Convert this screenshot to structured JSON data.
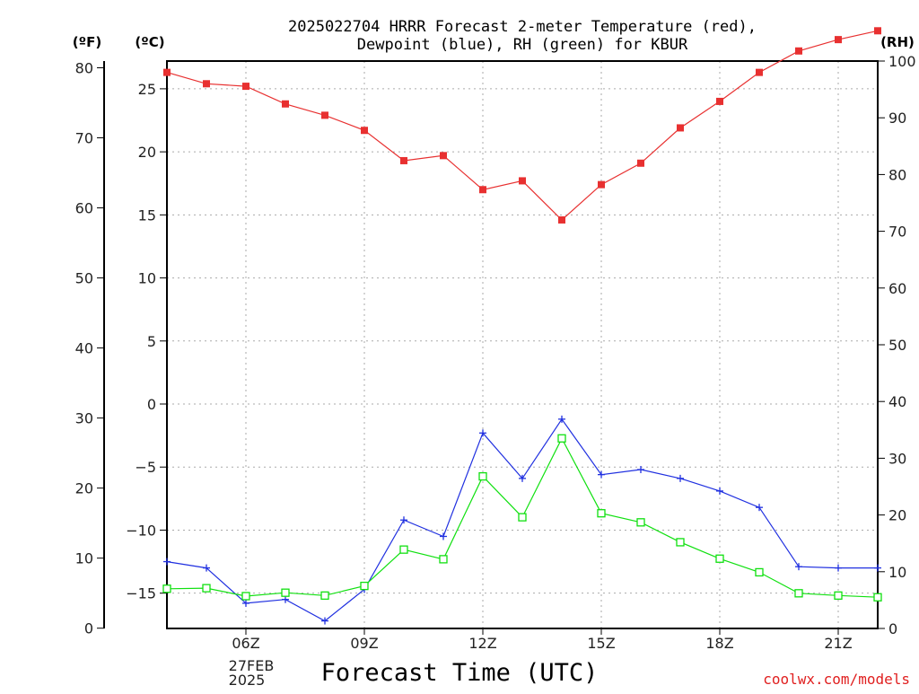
{
  "chart_data": {
    "type": "line",
    "title": "2025022704 HRRR Forecast 2-meter Temperature (red),",
    "subtitle": "Dewpoint (blue), RH (green) for KBUR",
    "xlabel": "Forecast Time (UTC)",
    "units": {
      "fahrenheit": "(ºF)",
      "celsius": "(ºC)",
      "rh": "(RH)"
    },
    "x_ticks": [
      "06Z",
      "09Z",
      "12Z",
      "15Z",
      "18Z",
      "21Z"
    ],
    "date_label_1": "27FEB",
    "date_label_2": "2025",
    "x": [
      "04Z",
      "05Z",
      "06Z",
      "07Z",
      "08Z",
      "09Z",
      "10Z",
      "11Z",
      "12Z",
      "13Z",
      "14Z",
      "15Z",
      "16Z",
      "17Z",
      "18Z",
      "19Z",
      "20Z",
      "21Z",
      "22Z"
    ],
    "celsius_ticks": [
      "25",
      "20",
      "15",
      "10",
      "5",
      "0",
      "−5",
      "−10",
      "−15"
    ],
    "fahrenheit_ticks": [
      "80",
      "70",
      "60",
      "50",
      "40",
      "30",
      "20",
      "10",
      "0"
    ],
    "rh_ticks": [
      "100",
      "90",
      "80",
      "70",
      "60",
      "50",
      "40",
      "30",
      "20",
      "10",
      "0"
    ],
    "xlim_hours": [
      4,
      22
    ],
    "ylim_celsius": [
      -17.8,
      27.2
    ],
    "ylim_rh": [
      0,
      100
    ],
    "grid": true,
    "series": [
      {
        "name": "Temperature",
        "axis": "celsius",
        "color": "#e83030",
        "marker": "filled-square",
        "values": [
          26.3,
          25.4,
          25.2,
          23.8,
          22.9,
          21.7,
          19.3,
          19.7,
          17.0,
          17.7,
          14.6,
          17.4,
          19.1,
          21.9,
          24.0,
          26.3,
          28.0,
          28.9,
          29.6
        ]
      },
      {
        "name": "Dewpoint",
        "axis": "celsius",
        "color": "#2030e0",
        "marker": "plus",
        "values": [
          -12.5,
          -13.0,
          -15.8,
          -15.5,
          -17.2,
          -14.7,
          -9.2,
          -10.5,
          -2.3,
          -5.9,
          -1.2,
          -5.6,
          -5.2,
          -5.9,
          -6.9,
          -8.2,
          -12.9,
          -13.0,
          -13.0
        ]
      },
      {
        "name": "RH",
        "axis": "rh",
        "color": "#10e010",
        "marker": "open-square",
        "values": [
          7.0,
          7.1,
          5.7,
          6.3,
          5.8,
          7.5,
          13.9,
          12.2,
          26.8,
          19.6,
          33.5,
          20.3,
          18.7,
          15.2,
          12.3,
          9.9,
          6.2,
          5.8,
          5.5
        ]
      }
    ]
  },
  "credit": "coolwx.com/models"
}
